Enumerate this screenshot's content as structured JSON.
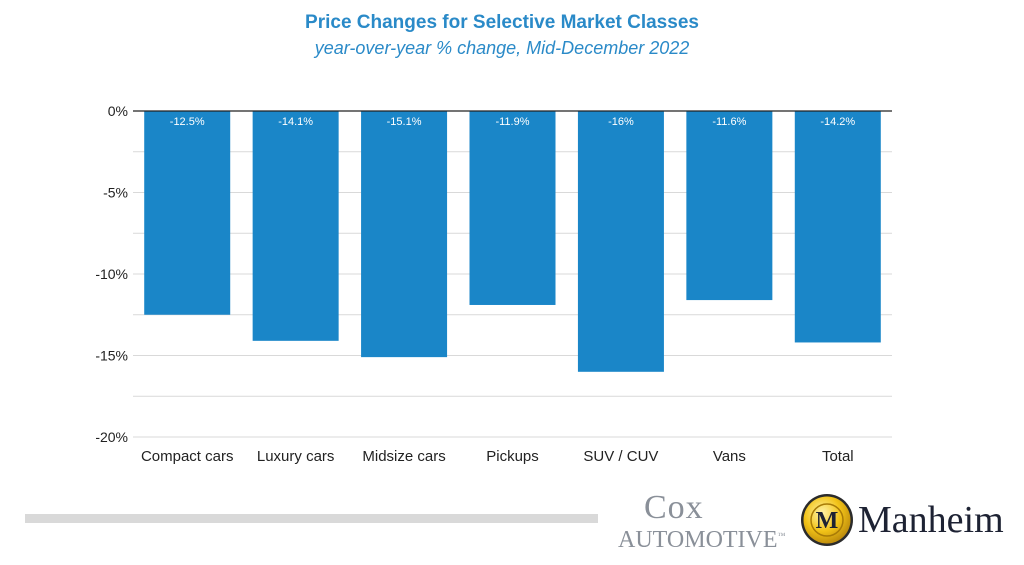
{
  "chart_data": {
    "type": "bar",
    "title": "Price Changes for Selective Market Classes",
    "subtitle": "year-over-year % change, Mid-December 2022",
    "categories": [
      "Compact cars",
      "Luxury cars",
      "Midsize cars",
      "Pickups",
      "SUV / CUV",
      "Vans",
      "Total"
    ],
    "values": [
      -12.5,
      -14.1,
      -15.1,
      -11.9,
      -16,
      -11.6,
      -14.2
    ],
    "data_labels": [
      "-12.5%",
      "-14.1%",
      "-15.1%",
      "-11.9%",
      "-16%",
      "-11.6%",
      "-14.2%"
    ],
    "yticks": [
      0,
      -5,
      -10,
      -15,
      -20
    ],
    "ytick_labels": [
      "0%",
      "-5%",
      "-10%",
      "-15%",
      "-20%"
    ],
    "ylim": [
      -20,
      0
    ],
    "grid": true,
    "bar_color": "#1a86c8",
    "label_color": "#ffffff",
    "xlabel": "",
    "ylabel": ""
  },
  "branding": {
    "cox_word": "Cox",
    "cox_sub": "AUTOMOTIVE",
    "cox_tm": "™",
    "manheim_word": "Manheim",
    "manheim_seal_letter": "M"
  }
}
